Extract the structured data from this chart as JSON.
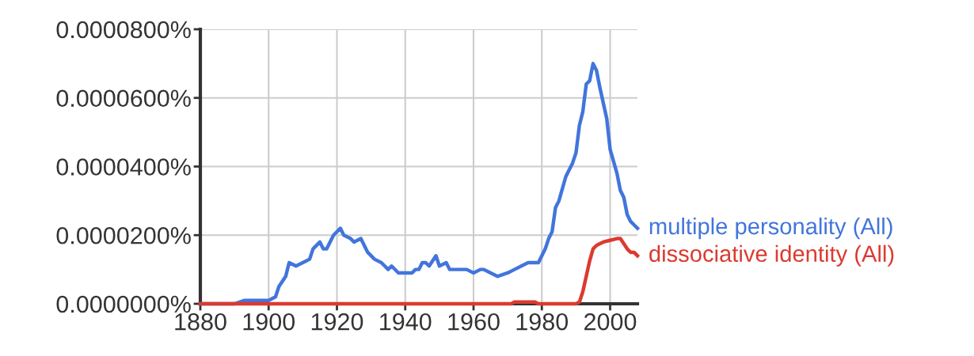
{
  "chart_data": {
    "type": "line",
    "xlim": [
      1880,
      2008
    ],
    "xticks": [
      1880,
      1900,
      1920,
      1940,
      1960,
      1980,
      2000
    ],
    "ylim": [
      0,
      8e-05
    ],
    "yticks": [
      {
        "value": 0,
        "label": "0.0000000%"
      },
      {
        "value": 2e-05,
        "label": "0.0000200%"
      },
      {
        "value": 4e-05,
        "label": "0.0000400%"
      },
      {
        "value": 6e-05,
        "label": "0.0000600%"
      },
      {
        "value": 8e-05,
        "label": "0.0000800%"
      }
    ],
    "grid": true,
    "legend": false,
    "marker": "none",
    "line_style": "solid",
    "series": [
      {
        "name": "multiple personality (All)",
        "color": "#4275dc",
        "x": [
          1880,
          1885,
          1890,
          1893,
          1895,
          1900,
          1902,
          1903,
          1905,
          1906,
          1908,
          1910,
          1912,
          1913,
          1915,
          1916,
          1917,
          1919,
          1921,
          1922,
          1924,
          1925,
          1927,
          1929,
          1931,
          1933,
          1934,
          1935,
          1936,
          1938,
          1940,
          1942,
          1943,
          1944,
          1945,
          1946,
          1947,
          1949,
          1950,
          1952,
          1953,
          1955,
          1956,
          1958,
          1960,
          1962,
          1963,
          1965,
          1967,
          1970,
          1972,
          1974,
          1976,
          1978,
          1979,
          1981,
          1982,
          1983,
          1984,
          1985,
          1987,
          1988,
          1989,
          1990,
          1991,
          1992,
          1993,
          1994,
          1995,
          1996,
          1997,
          1999,
          2000,
          2002,
          2003,
          2004,
          2005,
          2006,
          2007,
          2008
        ],
        "values": [
          0.0,
          0.0,
          0.0,
          1e-06,
          1e-06,
          1e-06,
          2e-06,
          5e-06,
          8e-06,
          1.2e-05,
          1.1e-05,
          1.2e-05,
          1.3e-05,
          1.6e-05,
          1.8e-05,
          1.6e-05,
          1.6e-05,
          2e-05,
          2.2e-05,
          2e-05,
          1.9e-05,
          1.8e-05,
          1.9e-05,
          1.5e-05,
          1.3e-05,
          1.2e-05,
          1.1e-05,
          1e-05,
          1.1e-05,
          9e-06,
          9e-06,
          9e-06,
          1e-05,
          1e-05,
          1.2e-05,
          1.2e-05,
          1.1e-05,
          1.4e-05,
          1.1e-05,
          1.2e-05,
          1e-05,
          1e-05,
          1e-05,
          1e-05,
          9e-06,
          1e-05,
          1e-05,
          9e-06,
          8e-06,
          9e-06,
          1e-05,
          1.1e-05,
          1.2e-05,
          1.2e-05,
          1.2e-05,
          1.6e-05,
          1.9e-05,
          2.1e-05,
          2.8e-05,
          3e-05,
          3.7e-05,
          3.9e-05,
          4.1e-05,
          4.4e-05,
          5.2e-05,
          5.6e-05,
          6.4e-05,
          6.5e-05,
          7e-05,
          6.8e-05,
          6.3e-05,
          5.4e-05,
          4.5e-05,
          3.8e-05,
          3.3e-05,
          3.1e-05,
          2.6e-05,
          2.4e-05,
          2.3e-05,
          2.2e-05
        ]
      },
      {
        "name": "dissociative identity (All)",
        "color": "#dc3a2f",
        "x": [
          1880,
          1971,
          1972,
          1978,
          1979,
          1990,
          1991,
          1992,
          1993,
          1994,
          1995,
          1996,
          1997,
          1998,
          2000,
          2002,
          2003,
          2004,
          2005,
          2006,
          2007,
          2008
        ],
        "values": [
          0.0,
          0.0,
          5e-07,
          5e-07,
          0.0,
          0.0,
          5e-07,
          3.5e-06,
          8e-06,
          1.25e-05,
          1.6e-05,
          1.7e-05,
          1.75e-05,
          1.8e-05,
          1.85e-05,
          1.9e-05,
          1.9e-05,
          1.75e-05,
          1.6e-05,
          1.5e-05,
          1.5e-05,
          1.4e-05
        ]
      }
    ]
  }
}
